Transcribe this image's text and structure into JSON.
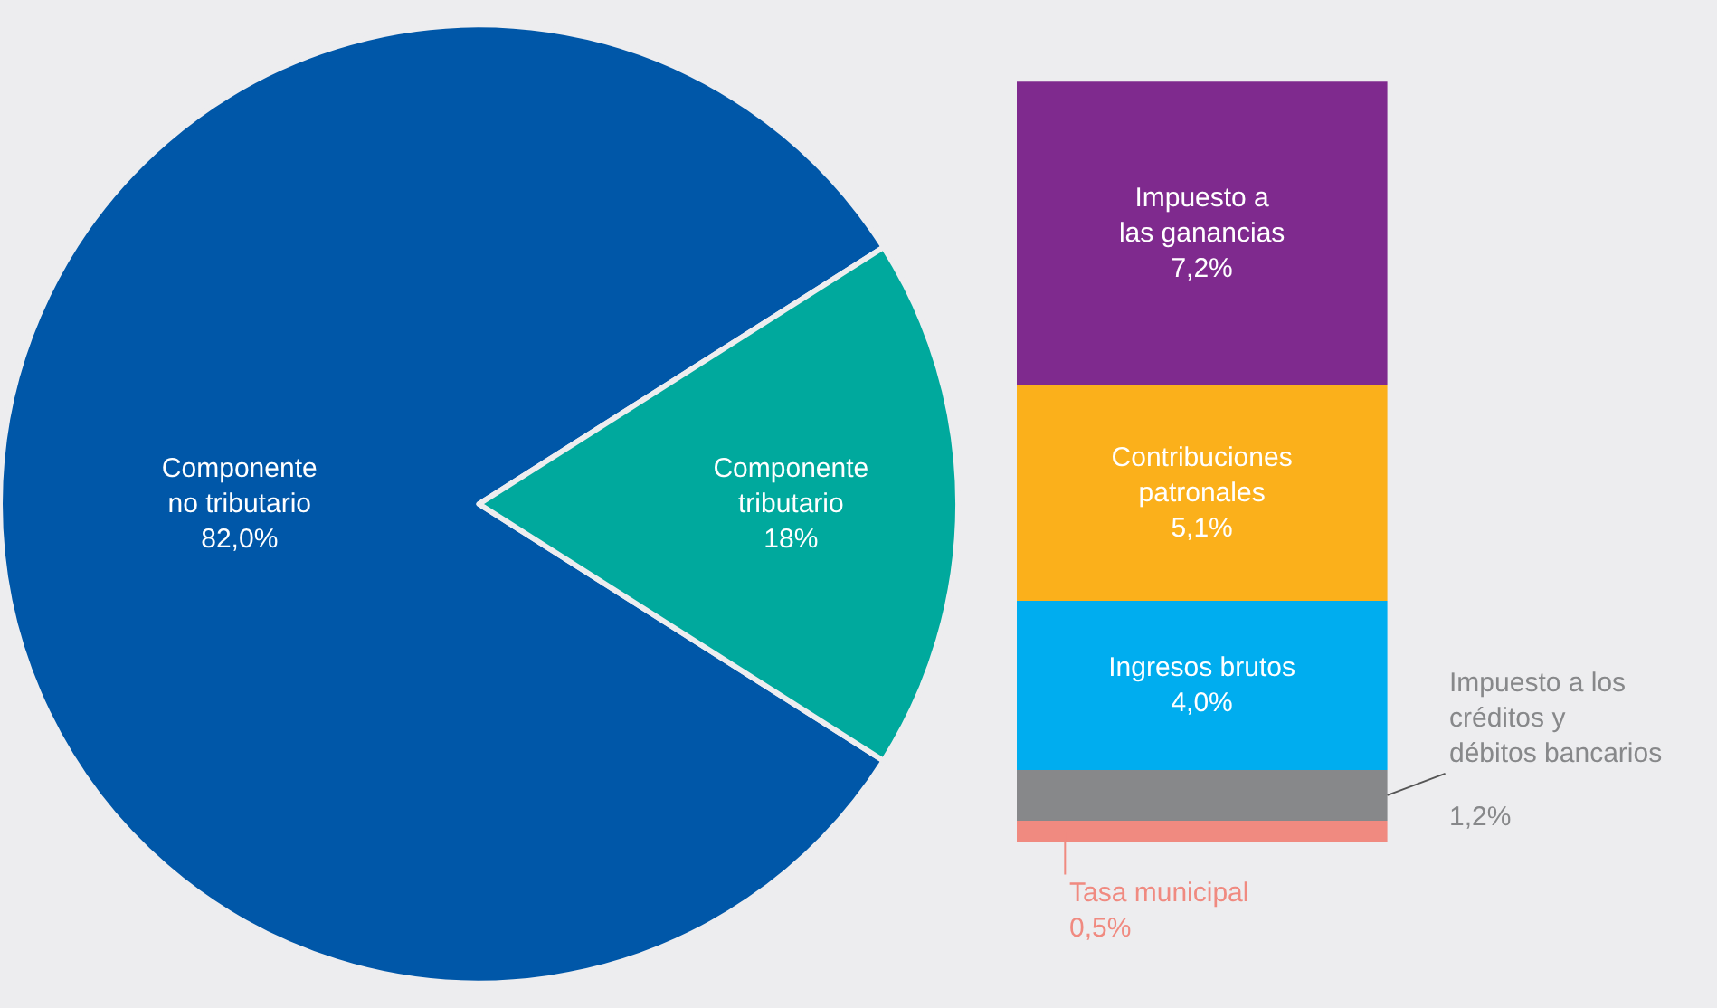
{
  "chart_data": [
    {
      "type": "pie",
      "categories": [
        "Componente\nno tributario",
        "Componente\ntributario"
      ],
      "values": [
        82.0,
        18
      ],
      "value_labels": [
        "82,0%",
        "18%"
      ],
      "colors": [
        "#0057a8",
        "#00a99d"
      ]
    },
    {
      "type": "bar",
      "stacked": true,
      "categories": [
        null
      ],
      "ylim": [
        0,
        18
      ],
      "tick_labels": false,
      "series": [
        {
          "name": "Tasa municipal",
          "color": "#f08a80",
          "values": [
            0.5
          ],
          "value_labels": [
            "0,5%"
          ]
        },
        {
          "name": "Impuesto a los\ncréditos y\ndébitos bancarios",
          "color": "#87888a",
          "values": [
            1.2
          ],
          "value_labels": [
            "1,2%"
          ]
        },
        {
          "name": "Ingresos brutos",
          "color": "#00adef",
          "values": [
            4.0
          ],
          "value_labels": [
            "4,0%"
          ]
        },
        {
          "name": "Contribuciones\npatronales",
          "color": "#fbb01b",
          "values": [
            5.1
          ],
          "value_labels": [
            "5,1%"
          ]
        },
        {
          "name": "Impuesto a\nlas ganancias",
          "color": "#7f2a8e",
          "values": [
            7.2
          ],
          "value_labels": [
            "7,2%"
          ]
        }
      ]
    }
  ]
}
